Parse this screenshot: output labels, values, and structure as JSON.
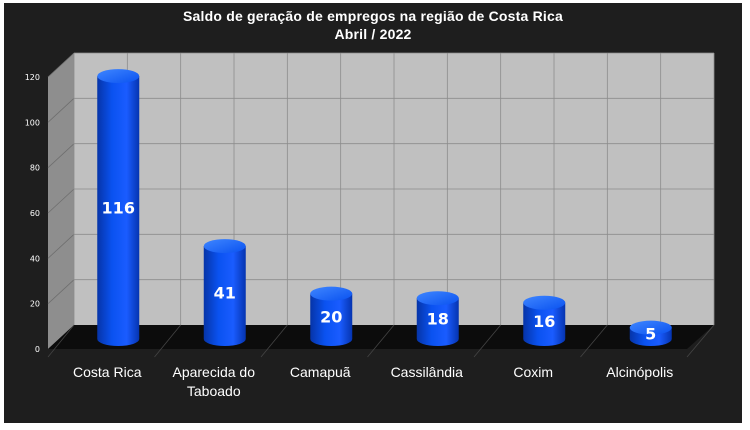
{
  "chart_data": {
    "type": "bar",
    "title": [
      "Saldo de geração de empregos na região de Costa Rica",
      "Abril / 2022"
    ],
    "categories": [
      [
        "Costa Rica"
      ],
      [
        "Aparecida do",
        "Taboado"
      ],
      [
        "Camapuã"
      ],
      [
        "Cassilândia"
      ],
      [
        "Coxim"
      ],
      [
        "Alcinópolis"
      ]
    ],
    "values": [
      116,
      41,
      20,
      18,
      16,
      5
    ],
    "data_labels": [
      "116",
      "41",
      "20",
      "18",
      "16",
      "5"
    ],
    "yticks": [
      "0",
      "20",
      "40",
      "60",
      "80",
      "100",
      "120"
    ],
    "ylim": [
      0,
      120
    ],
    "grid": true,
    "bar_style": "3d-cylinder",
    "colors": {
      "background": "#1e1e1e",
      "wall": "#c0c0c0",
      "side_wall": "#8e8e8e",
      "floor": "#0c0c0c",
      "bar": "#0a52f0",
      "bar_dark": "#0634a8",
      "bar_light": "#3f86ff"
    }
  }
}
